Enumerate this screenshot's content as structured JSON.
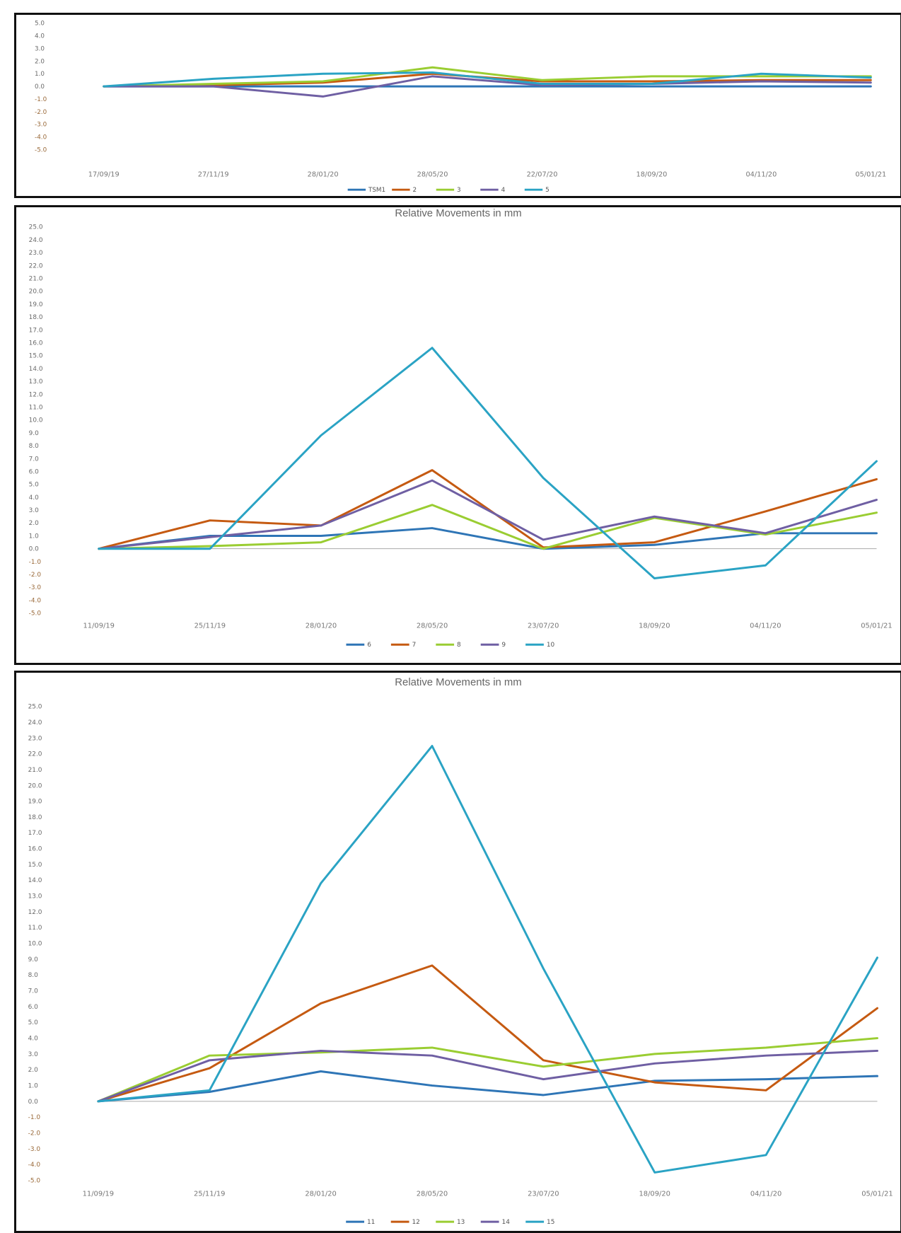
{
  "colors": {
    "s1": "#2e75b6",
    "s2": "#c55a11",
    "s3": "#9acd32",
    "s4": "#6f5fa3",
    "s5": "#2aa3c4",
    "axis": "#aaaaaa"
  },
  "chart_data": [
    {
      "type": "line",
      "title": "",
      "xlabel": "",
      "ylabel": "",
      "ylim": [
        -5,
        5
      ],
      "yticks": [
        "5.0",
        "4.0",
        "3.0",
        "2.0",
        "1.0",
        "0.0",
        "-1.0",
        "-2.0",
        "-3.0",
        "-4.0",
        "-5.0"
      ],
      "ytick_values": [
        5,
        4,
        3,
        2,
        1,
        0,
        -1,
        -2,
        -3,
        -4,
        -5
      ],
      "categories": [
        "17/09/19",
        "27/11/19",
        "28/01/20",
        "28/05/20",
        "22/07/20",
        "18/09/20",
        "04/11/20",
        "05/01/21"
      ],
      "legend_position": "bottom",
      "series": [
        {
          "name": "TSM1",
          "values": [
            0,
            0,
            0,
            0,
            0,
            0,
            0,
            0
          ]
        },
        {
          "name": "2",
          "values": [
            0,
            0.1,
            0.3,
            1.0,
            0.4,
            0.4,
            0.5,
            0.5
          ]
        },
        {
          "name": "3",
          "values": [
            0,
            0.2,
            0.4,
            1.5,
            0.5,
            0.8,
            0.8,
            0.8
          ]
        },
        {
          "name": "4",
          "values": [
            0,
            0,
            -0.8,
            0.8,
            0.1,
            0.2,
            0.4,
            0.3
          ]
        },
        {
          "name": "5",
          "values": [
            0,
            0.6,
            1.0,
            1.1,
            0.2,
            0.2,
            1.0,
            0.7
          ]
        }
      ]
    },
    {
      "type": "line",
      "title": "Relative Movements in mm",
      "xlabel": "",
      "ylabel": "",
      "ylim": [
        -5,
        25
      ],
      "yticks": [
        "25.0",
        "24.0",
        "23.0",
        "22.0",
        "21.0",
        "20.0",
        "19.0",
        "18.0",
        "17.0",
        "16.0",
        "15.0",
        "14.0",
        "13.0",
        "12.0",
        "11.0",
        "10.0",
        "9.0",
        "8.0",
        "7.0",
        "6.0",
        "5.0",
        "4.0",
        "3.0",
        "2.0",
        "1.0",
        "0.0",
        "-1.0",
        "-2.0",
        "-3.0",
        "-4.0",
        "-5.0"
      ],
      "ytick_values": [
        25,
        24,
        23,
        22,
        21,
        20,
        19,
        18,
        17,
        16,
        15,
        14,
        13,
        12,
        11,
        10,
        9,
        8,
        7,
        6,
        5,
        4,
        3,
        2,
        1,
        0,
        -1,
        -2,
        -3,
        -4,
        -5
      ],
      "categories": [
        "11/09/19",
        "25/11/19",
        "28/01/20",
        "28/05/20",
        "23/07/20",
        "18/09/20",
        "04/11/20",
        "05/01/21"
      ],
      "legend_position": "bottom",
      "series": [
        {
          "name": "6",
          "values": [
            0,
            1.0,
            1.0,
            1.6,
            0,
            0.3,
            1.2,
            1.2
          ]
        },
        {
          "name": "7",
          "values": [
            0,
            2.2,
            1.8,
            6.1,
            0.1,
            0.5,
            2.9,
            5.4
          ]
        },
        {
          "name": "8",
          "values": [
            0,
            0.2,
            0.5,
            3.4,
            0,
            2.4,
            1.1,
            2.8
          ]
        },
        {
          "name": "9",
          "values": [
            0,
            0.9,
            1.8,
            5.3,
            0.7,
            2.5,
            1.2,
            3.8
          ]
        },
        {
          "name": "10",
          "values": [
            0,
            0,
            8.8,
            15.6,
            5.5,
            -2.3,
            -1.3,
            6.8
          ]
        }
      ]
    },
    {
      "type": "line",
      "title": "Relative Movements in mm",
      "xlabel": "",
      "ylabel": "",
      "ylim": [
        -5,
        25
      ],
      "yticks": [
        "25.0",
        "24.0",
        "23.0",
        "22.0",
        "21.0",
        "20.0",
        "19.0",
        "18.0",
        "17.0",
        "16.0",
        "15.0",
        "14.0",
        "13.0",
        "12.0",
        "11.0",
        "10.0",
        "9.0",
        "8.0",
        "7.0",
        "6.0",
        "5.0",
        "4.0",
        "3.0",
        "2.0",
        "1.0",
        "0.0",
        "-1.0",
        "-2.0",
        "-3.0",
        "-4.0",
        "-5.0"
      ],
      "ytick_values": [
        25,
        24,
        23,
        22,
        21,
        20,
        19,
        18,
        17,
        16,
        15,
        14,
        13,
        12,
        11,
        10,
        9,
        8,
        7,
        6,
        5,
        4,
        3,
        2,
        1,
        0,
        -1,
        -2,
        -3,
        -4,
        -5
      ],
      "categories": [
        "11/09/19",
        "25/11/19",
        "28/01/20",
        "28/05/20",
        "23/07/20",
        "18/09/20",
        "04/11/20",
        "05/01/21"
      ],
      "legend_position": "bottom",
      "series": [
        {
          "name": "11",
          "values": [
            0,
            0.6,
            1.9,
            1.0,
            0.4,
            1.3,
            1.4,
            1.6
          ]
        },
        {
          "name": "12",
          "values": [
            0,
            2.1,
            6.2,
            8.6,
            2.6,
            1.2,
            0.7,
            5.9
          ]
        },
        {
          "name": "13",
          "values": [
            0,
            2.9,
            3.1,
            3.4,
            2.2,
            3.0,
            3.4,
            4.0
          ]
        },
        {
          "name": "14",
          "values": [
            0,
            2.6,
            3.2,
            2.9,
            1.4,
            2.4,
            2.9,
            3.2
          ]
        },
        {
          "name": "15",
          "values": [
            0,
            0.7,
            13.8,
            22.5,
            8.4,
            -4.5,
            -3.4,
            9.1
          ]
        }
      ]
    }
  ]
}
